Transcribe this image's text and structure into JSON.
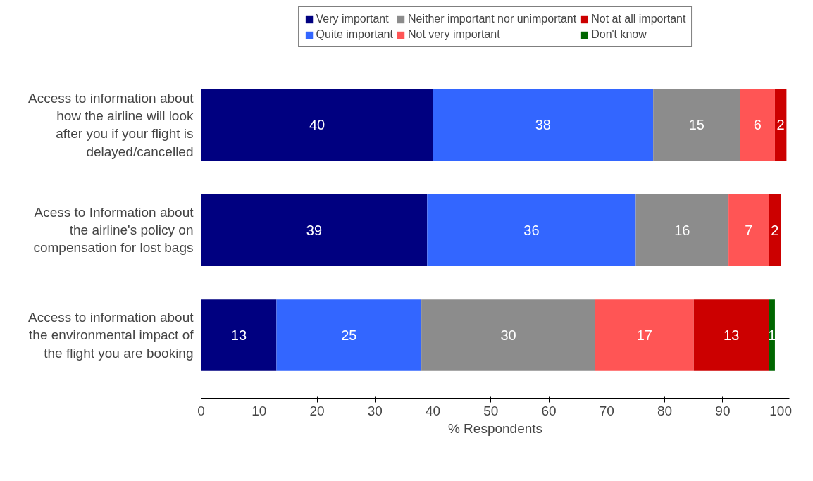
{
  "chart_data": {
    "type": "bar",
    "orientation": "horizontal",
    "stacked": true,
    "xlabel": "% Respondents",
    "categories": [
      "Access to information about how the airline will look after you if your flight is delayed/cancelled",
      "Acess to Information about the airline's policy on compensation for lost bags",
      "Access to information about the environmental impact of the flight you are booking"
    ],
    "series": [
      {
        "name": "Very important",
        "color": "#000080",
        "values": [
          40,
          39,
          13
        ]
      },
      {
        "name": "Quite important",
        "color": "#3366ff",
        "values": [
          38,
          36,
          25
        ]
      },
      {
        "name": "Neither important nor unimportant",
        "color": "#8c8c8c",
        "values": [
          15,
          16,
          30
        ]
      },
      {
        "name": "Not very important",
        "color": "#ff5555",
        "values": [
          6,
          7,
          17
        ]
      },
      {
        "name": "Not at all important",
        "color": "#cc0000",
        "values": [
          2,
          2,
          13
        ]
      },
      {
        "name": "Don't know",
        "color": "#006600",
        "values": [
          null,
          null,
          1
        ]
      }
    ],
    "xlim": [
      0,
      101.5
    ],
    "xticks": [
      0,
      10,
      20,
      30,
      40,
      50,
      60,
      70,
      80,
      90,
      100
    ],
    "data_labels": true,
    "grid": false,
    "legend": "top"
  }
}
